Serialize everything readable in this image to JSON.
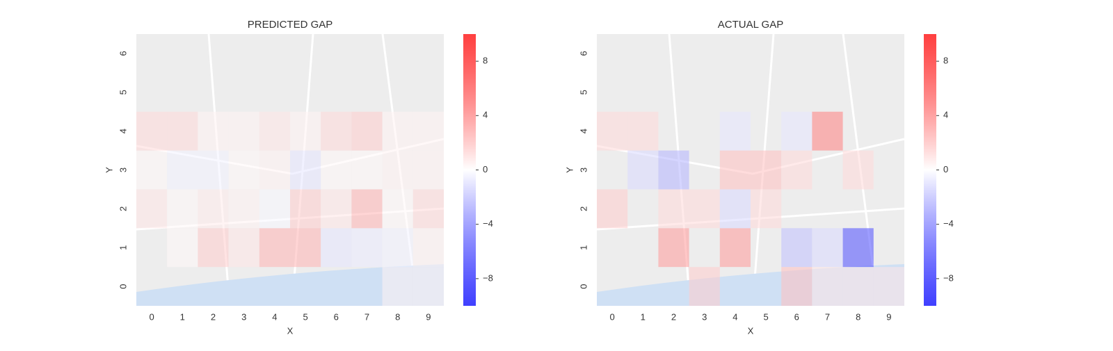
{
  "chart_data": [
    {
      "type": "heatmap",
      "title": "PREDICTED GAP",
      "x_label": "X",
      "y_label": "Y",
      "x": [
        0,
        1,
        2,
        3,
        4,
        5,
        6,
        7,
        8,
        9
      ],
      "y": [
        0,
        1,
        2,
        3,
        4,
        5,
        6
      ],
      "values": [
        [
          null,
          null,
          null,
          null,
          null,
          null,
          null,
          null,
          0.5,
          0.5
        ],
        [
          null,
          0.3,
          2,
          1,
          3,
          3,
          -1,
          -0.8,
          -0.5,
          0.5
        ],
        [
          1,
          0.3,
          0.8,
          0.5,
          -0.3,
          2,
          1,
          3,
          0.3,
          1.5
        ],
        [
          0.3,
          -0.5,
          -0.5,
          0.3,
          0.5,
          -1,
          0.3,
          0.3,
          0.5,
          0.5
        ],
        [
          1.5,
          1.5,
          0.5,
          0.5,
          1,
          0.5,
          1.5,
          2,
          0.5,
          0.5
        ],
        [
          null,
          null,
          null,
          null,
          null,
          null,
          null,
          null,
          null,
          null
        ],
        [
          null,
          null,
          null,
          null,
          null,
          null,
          null,
          null,
          null,
          null
        ]
      ],
      "colors": [
        "#0000ff",
        "#ffffff",
        "#ff0000"
      ],
      "clim": [
        -10,
        10
      ],
      "cticks": [
        {
          "value": -8,
          "label": "−8"
        },
        {
          "value": -4,
          "label": "−4"
        },
        0,
        4,
        8
      ]
    },
    {
      "type": "heatmap",
      "title": "ACTUAL GAP",
      "x_label": "X",
      "y_label": "Y",
      "x": [
        0,
        1,
        2,
        3,
        4,
        5,
        6,
        7,
        8,
        9
      ],
      "y": [
        0,
        1,
        2,
        3,
        4,
        5,
        6
      ],
      "values": [
        [
          null,
          null,
          null,
          2,
          null,
          null,
          2.5,
          1,
          1,
          1
        ],
        [
          null,
          null,
          4,
          null,
          4,
          null,
          -2.5,
          -1.5,
          -7,
          null
        ],
        [
          2,
          null,
          1.5,
          1.5,
          -1.5,
          1.5,
          null,
          null,
          null,
          null
        ],
        [
          null,
          -1.5,
          -3,
          null,
          2.5,
          2.5,
          1.5,
          null,
          1.5,
          null
        ],
        [
          1.5,
          1.5,
          null,
          null,
          -1,
          null,
          -1,
          5,
          null,
          null
        ],
        [
          null,
          null,
          null,
          null,
          null,
          null,
          null,
          null,
          null,
          null
        ],
        [
          null,
          null,
          null,
          null,
          null,
          null,
          null,
          null,
          null,
          null
        ]
      ],
      "colors": [
        "#0000ff",
        "#ffffff",
        "#ff0000"
      ],
      "clim": [
        -10,
        10
      ],
      "cticks": [
        {
          "value": -8,
          "label": "−8"
        },
        {
          "value": -4,
          "label": "−4"
        },
        0,
        4,
        8
      ]
    }
  ]
}
